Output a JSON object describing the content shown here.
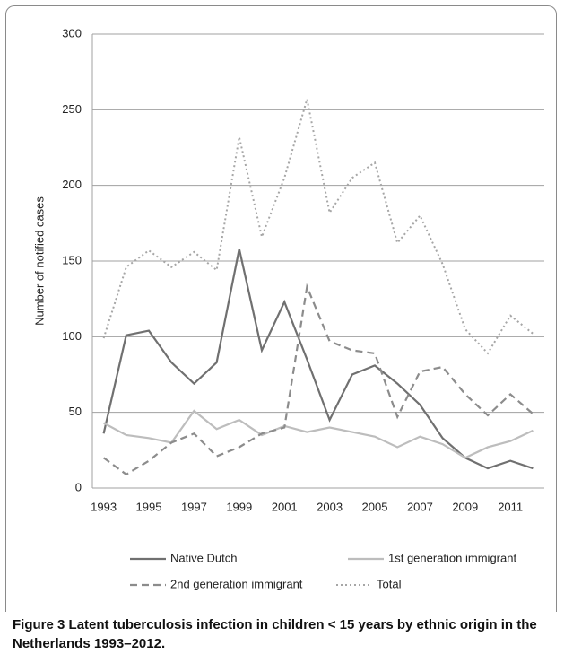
{
  "chart_data": {
    "type": "line",
    "ylabel": "Number of notified cases",
    "categories": [
      "1993",
      null,
      "1995",
      null,
      "1997",
      null,
      "1999",
      null,
      "2001",
      null,
      "2003",
      null,
      "2005",
      null,
      "2007",
      null,
      "2009",
      null,
      "2011",
      null
    ],
    "series": [
      {
        "name": "Native Dutch",
        "color": "#707070",
        "dash": "solid",
        "values": [
          36,
          101,
          104,
          83,
          69,
          83,
          158,
          91,
          123,
          85,
          45,
          75,
          81,
          69,
          55,
          33,
          20,
          13,
          18,
          13
        ]
      },
      {
        "name": "1st generation immigrant",
        "color": "#bdbdbd",
        "dash": "solid",
        "values": [
          43,
          35,
          33,
          30,
          51,
          39,
          45,
          35,
          41,
          37,
          40,
          37,
          34,
          27,
          34,
          29,
          20,
          27,
          31,
          38
        ]
      },
      {
        "name": "2nd generation immigrant",
        "color": "#8c8c8c",
        "dash": "dashed",
        "values": [
          20,
          9,
          18,
          30,
          36,
          21,
          27,
          36,
          40,
          133,
          97,
          91,
          89,
          47,
          77,
          80,
          62,
          48,
          62,
          49
        ]
      },
      {
        "name": "Total",
        "color": "#a6a6a6",
        "dash": "dotted",
        "values": [
          99,
          146,
          157,
          146,
          156,
          144,
          232,
          166,
          205,
          257,
          182,
          205,
          215,
          162,
          180,
          148,
          105,
          89,
          114,
          102
        ]
      }
    ],
    "ylim": [
      0,
      300
    ],
    "yticks": [
      0,
      50,
      100,
      150,
      200,
      250,
      300
    ],
    "grid": true,
    "legend": "bottom",
    "caption_label": "Figure 3",
    "caption": "Latent tuberculosis infection in children < 15 years by ethnic origin in the Netherlands 1993–2012."
  }
}
